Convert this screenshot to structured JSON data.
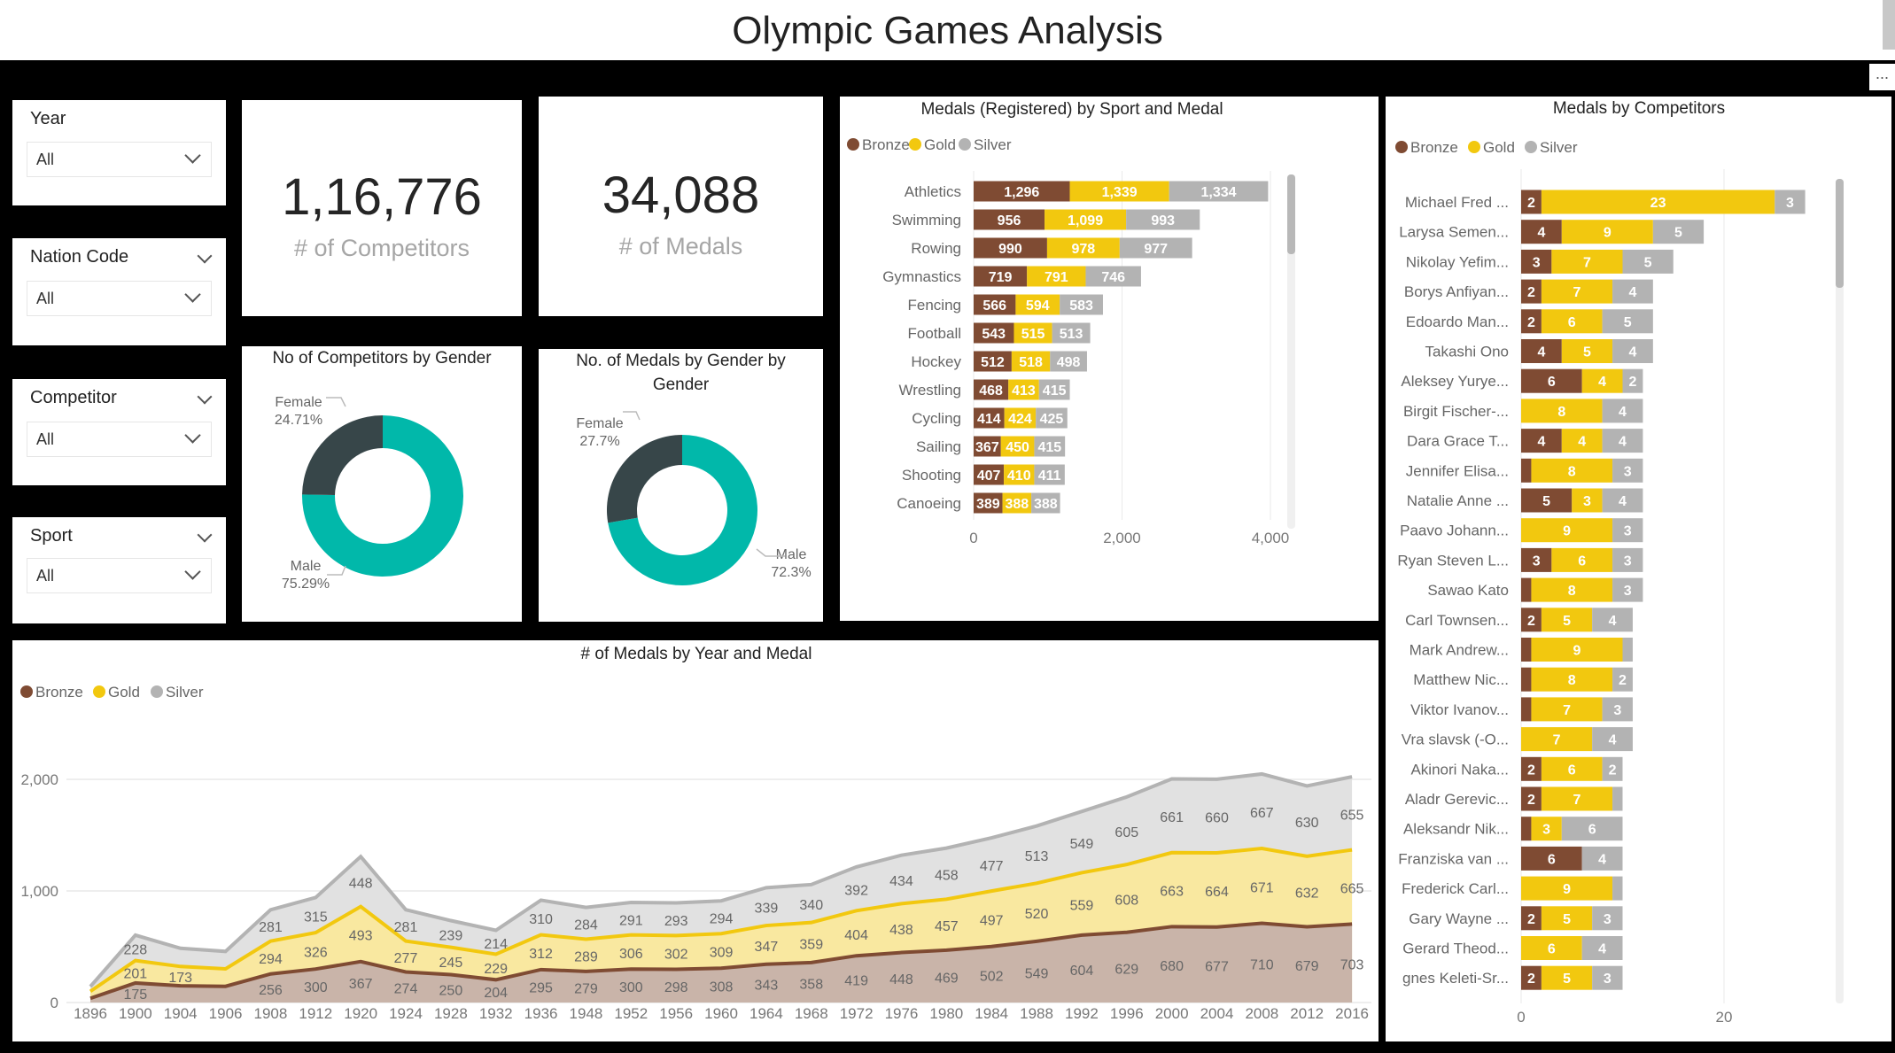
{
  "header": {
    "title": "Olympic Games Analysis",
    "more_options": "..."
  },
  "colors": {
    "bronze": "#7f4b33",
    "gold": "#f2c80f",
    "silver": "#b3b3b3",
    "bronze_fill": "#c9b4a9",
    "gold_fill": "#f9e8a0",
    "silver_fill": "#e1e1e1",
    "male": "#01b8aa",
    "female": "#374649"
  },
  "slicers": [
    {
      "label": "Year",
      "value": "All"
    },
    {
      "label": "Nation Code",
      "value": "All"
    },
    {
      "label": "Competitor",
      "value": "All"
    },
    {
      "label": "Sport",
      "value": "All"
    }
  ],
  "kpis": [
    {
      "value": "1,16,776",
      "label": "# of Competitors"
    },
    {
      "value": "34,088",
      "label": "# of Medals"
    }
  ],
  "donuts": [
    {
      "title": "No of Competitors by Gender",
      "segments": [
        {
          "label": "Female",
          "pct": 24.71,
          "display": "24.71%"
        },
        {
          "label": "Male",
          "pct": 75.29,
          "display": "75.29%"
        }
      ]
    },
    {
      "title_line1": "No. of Medals by Gender by",
      "title_line2": "Gender",
      "segments": [
        {
          "label": "Female",
          "pct": 27.7,
          "display": "27.7%"
        },
        {
          "label": "Male",
          "pct": 72.3,
          "display": "72.3%"
        }
      ]
    }
  ],
  "chart_data": [
    {
      "type": "bar",
      "orientation": "horizontal-stacked",
      "title": "Medals (Registered) by Sport and Medal",
      "legend": [
        "Bronze",
        "Gold",
        "Silver"
      ],
      "legend_position": "top-left",
      "categories": [
        "Athletics",
        "Swimming",
        "Rowing",
        "Gymnastics",
        "Fencing",
        "Football",
        "Hockey",
        "Wrestling",
        "Cycling",
        "Sailing",
        "Shooting",
        "Canoeing"
      ],
      "series": [
        {
          "name": "Bronze",
          "values": [
            1296,
            956,
            990,
            719,
            566,
            543,
            512,
            468,
            414,
            367,
            407,
            389
          ]
        },
        {
          "name": "Gold",
          "values": [
            1339,
            1099,
            978,
            791,
            594,
            515,
            518,
            413,
            424,
            450,
            410,
            388
          ]
        },
        {
          "name": "Silver",
          "values": [
            1334,
            993,
            977,
            746,
            583,
            513,
            498,
            415,
            425,
            415,
            411,
            388
          ]
        }
      ],
      "value_labels": [
        [
          "1,296",
          "956",
          "990",
          "719",
          "566",
          "543",
          "512",
          "468",
          "414",
          "367",
          "407",
          "389"
        ],
        [
          "1,339",
          "1,099",
          "978",
          "791",
          "594",
          "515",
          "518",
          "413",
          "424",
          "450",
          "410",
          "388"
        ],
        [
          "1,334",
          "993",
          "977",
          "746",
          "583",
          "513",
          "498",
          "415",
          "425",
          "415",
          "411",
          "388"
        ]
      ],
      "xlim": [
        0,
        4000
      ],
      "xticks": [
        "0",
        "2,000",
        "4,000"
      ],
      "grid": true
    },
    {
      "type": "bar",
      "orientation": "horizontal-stacked",
      "title": "Medals by Competitors",
      "legend": [
        "Bronze",
        "Gold",
        "Silver"
      ],
      "legend_position": "top-left",
      "categories": [
        "Michael Fred ...",
        "Larysa Semen...",
        "Nikolay Yefim...",
        "Borys Anfiyan...",
        "Edoardo Man...",
        "Takashi Ono",
        "Aleksey Yurye...",
        "Birgit Fischer-...",
        "Dara Grace T...",
        "Jennifer Elisa...",
        "Natalie Anne ...",
        "Paavo Johann...",
        "Ryan Steven L...",
        "Sawao Kato",
        "Carl Townsen...",
        "Mark Andrew...",
        "Matthew Nic...",
        "Viktor Ivanov...",
        "Vra slavsk (-O...",
        "Akinori Naka...",
        "Aladr Gerevic...",
        "Aleksandr Nik...",
        "Franziska van ...",
        "Frederick Carl...",
        "Gary Wayne ...",
        "Gerard Theod...",
        "gnes Keleti-Sr..."
      ],
      "series": [
        {
          "name": "Bronze",
          "values": [
            2,
            4,
            3,
            2,
            2,
            4,
            6,
            0,
            4,
            1,
            5,
            0,
            3,
            1,
            2,
            1,
            1,
            1,
            0,
            2,
            2,
            1,
            6,
            0,
            2,
            0,
            2
          ]
        },
        {
          "name": "Gold",
          "values": [
            23,
            9,
            7,
            7,
            6,
            5,
            4,
            8,
            4,
            8,
            3,
            9,
            6,
            8,
            5,
            9,
            8,
            7,
            7,
            6,
            7,
            3,
            0,
            9,
            5,
            6,
            5
          ]
        },
        {
          "name": "Silver",
          "values": [
            3,
            5,
            5,
            4,
            5,
            4,
            2,
            4,
            4,
            3,
            4,
            3,
            3,
            3,
            4,
            1,
            2,
            3,
            4,
            2,
            1,
            6,
            4,
            1,
            3,
            4,
            3
          ]
        }
      ],
      "xlim": [
        0,
        28
      ],
      "xticks": [
        "0",
        "20"
      ],
      "grid": true
    },
    {
      "type": "area",
      "stacked": true,
      "title": "# of Medals by Year and Medal",
      "legend": [
        "Bronze",
        "Gold",
        "Silver"
      ],
      "legend_position": "top-left",
      "x": [
        "1896",
        "1900",
        "1904",
        "1906",
        "1908",
        "1912",
        "1920",
        "1924",
        "1928",
        "1932",
        "1936",
        "1948",
        "1952",
        "1956",
        "1960",
        "1964",
        "1968",
        "1972",
        "1976",
        "1980",
        "1984",
        "1988",
        "1992",
        "1996",
        "2000",
        "2004",
        "2008",
        "2012",
        "2016"
      ],
      "series": [
        {
          "name": "Bronze",
          "values": [
            38,
            175,
            150,
            145,
            256,
            300,
            367,
            274,
            250,
            204,
            295,
            279,
            300,
            298,
            308,
            343,
            358,
            419,
            448,
            469,
            502,
            549,
            604,
            629,
            680,
            677,
            710,
            679,
            703
          ]
        },
        {
          "name": "Gold",
          "values": [
            62,
            201,
            173,
            157,
            294,
            326,
            493,
            277,
            245,
            229,
            312,
            289,
            306,
            302,
            309,
            347,
            359,
            404,
            438,
            457,
            497,
            520,
            559,
            608,
            663,
            664,
            671,
            632,
            665
          ]
        },
        {
          "name": "Silver",
          "values": [
            43,
            228,
            163,
            156,
            281,
            315,
            448,
            281,
            239,
            214,
            310,
            284,
            291,
            293,
            294,
            339,
            340,
            392,
            434,
            458,
            477,
            513,
            549,
            605,
            661,
            660,
            667,
            630,
            655
          ]
        }
      ],
      "ylim": [
        0,
        2000
      ],
      "yticks": [
        "0",
        "1,000",
        "2,000"
      ],
      "grid": true
    }
  ]
}
